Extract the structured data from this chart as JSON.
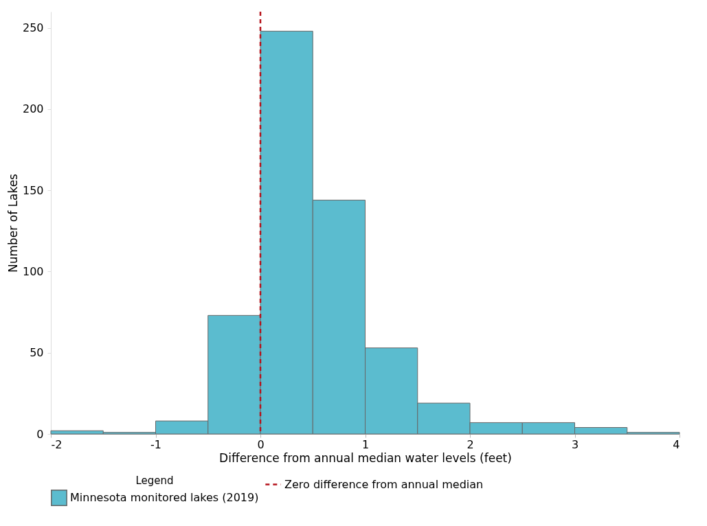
{
  "chart_data": {
    "type": "histogram",
    "xlabel": "Difference from annual median water levels (feet)",
    "ylabel": "Number of Lakes",
    "legend_title": "Legend",
    "bins": [
      -2,
      -1.5,
      -1,
      -0.5,
      0,
      0.5,
      1,
      1.5,
      2,
      2.5,
      3,
      3.5,
      4
    ],
    "series": [
      {
        "name": "Minnesota monitored lakes (2019)",
        "color": "#5bbccf",
        "values": [
          2,
          1,
          8,
          73,
          248,
          144,
          53,
          19,
          7,
          7,
          4,
          1
        ]
      }
    ],
    "xlim": [
      -2,
      4
    ],
    "xticks": [
      -2,
      -1,
      0,
      1,
      2,
      3,
      4
    ],
    "ylim": [
      0,
      260
    ],
    "yticks": [
      0,
      50,
      100,
      150,
      200,
      250
    ],
    "ref_lines": [
      {
        "axis": "x",
        "value": 0,
        "label": "Zero difference from annual median",
        "color": "#b5121b",
        "line_style": "dashed"
      }
    ],
    "grid": false,
    "legend": "bottom"
  }
}
